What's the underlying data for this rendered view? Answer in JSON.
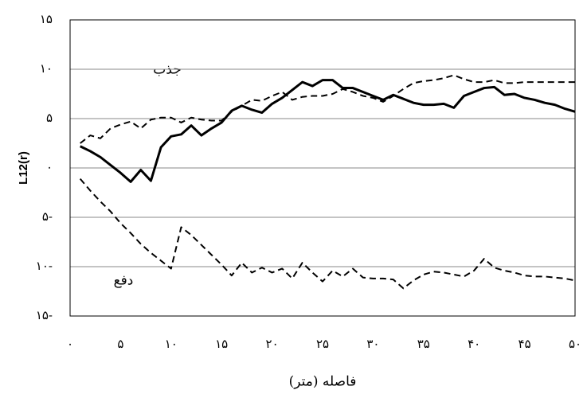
{
  "chart_data": {
    "type": "line",
    "y_label": "L12(r)",
    "x_label": "فاصله (متر)",
    "annotations": [
      "جذب",
      "دفع"
    ],
    "x": [
      1,
      2,
      3,
      4,
      5,
      6,
      7,
      8,
      9,
      10,
      11,
      12,
      13,
      14,
      15,
      16,
      17,
      18,
      19,
      20,
      21,
      22,
      23,
      24,
      25,
      26,
      27,
      28,
      29,
      30,
      31,
      32,
      33,
      34,
      35,
      36,
      37,
      38,
      39,
      40,
      41,
      42,
      43,
      44,
      45,
      46,
      47,
      48,
      49,
      50
    ],
    "series": [
      {
        "color": "#000000",
        "style": "solid",
        "values": [
          2.2,
          1.7,
          1.1,
          0.3,
          -0.5,
          -1.4,
          -0.2,
          -1.3,
          2.1,
          3.2,
          3.4,
          4.3,
          3.3,
          4.0,
          4.6,
          5.8,
          6.3,
          5.9,
          5.6,
          6.5,
          7.1,
          7.9,
          8.7,
          8.3,
          8.9,
          8.9,
          8.1,
          8.1,
          7.7,
          7.3,
          6.9,
          7.4,
          7.0,
          6.6,
          6.4,
          6.4,
          6.5,
          6.1,
          7.3,
          7.7,
          8.1,
          8.2,
          7.4,
          7.5,
          7.1,
          6.9,
          6.6,
          6.4,
          6.0,
          5.7
        ]
      },
      {
        "color": "#000000",
        "style": "dashed",
        "values": [
          2.5,
          3.3,
          3.0,
          4.0,
          4.4,
          4.7,
          4.0,
          4.9,
          5.1,
          5.1,
          4.6,
          5.1,
          4.9,
          4.8,
          4.8,
          5.7,
          6.3,
          6.9,
          6.8,
          7.3,
          7.7,
          6.9,
          7.2,
          7.3,
          7.3,
          7.5,
          8.0,
          7.7,
          7.3,
          7.1,
          6.7,
          7.3,
          8.0,
          8.6,
          8.8,
          8.9,
          9.1,
          9.4,
          9.0,
          8.7,
          8.7,
          8.9,
          8.6,
          8.6,
          8.7,
          8.7,
          8.7,
          8.7,
          8.7,
          8.7
        ]
      },
      {
        "color": "#000000",
        "style": "dashed",
        "values": [
          -1.1,
          -2.3,
          -3.4,
          -4.4,
          -5.6,
          -6.6,
          -7.7,
          -8.6,
          -9.4,
          -10.2,
          -6.0,
          -6.8,
          -7.8,
          -8.8,
          -9.8,
          -10.9,
          -9.6,
          -10.6,
          -10.1,
          -10.6,
          -10.2,
          -11.2,
          -9.6,
          -10.6,
          -11.5,
          -10.4,
          -11.0,
          -10.2,
          -11.1,
          -11.2,
          -11.2,
          -11.3,
          -12.2,
          -11.4,
          -10.8,
          -10.5,
          -10.6,
          -10.8,
          -11.0,
          -10.4,
          -9.2,
          -10.1,
          -10.4,
          -10.6,
          -10.9,
          -11.0,
          -11.0,
          -11.1,
          -11.2,
          -11.4
        ]
      }
    ],
    "xlim": [
      0,
      50
    ],
    "ylim": [
      -15,
      15
    ],
    "xticks": [
      {
        "value": 0,
        "label": "٠"
      },
      {
        "value": 5,
        "label": "۵"
      },
      {
        "value": 10,
        "label": "۱٠"
      },
      {
        "value": 15,
        "label": "۱۵"
      },
      {
        "value": 20,
        "label": "۲٠"
      },
      {
        "value": 25,
        "label": "۲۵"
      },
      {
        "value": 30,
        "label": "۳٠"
      },
      {
        "value": 35,
        "label": "۳۵"
      },
      {
        "value": 40,
        "label": "۴٠"
      },
      {
        "value": 45,
        "label": "۴۵"
      },
      {
        "value": 50,
        "label": "۵٠"
      }
    ],
    "yticks": [
      {
        "value": -15,
        "label": "۱۵-"
      },
      {
        "value": -10,
        "label": "۱٠-"
      },
      {
        "value": -5,
        "label": "۵-"
      },
      {
        "value": 0,
        "label": "٠"
      },
      {
        "value": 5,
        "label": "۵"
      },
      {
        "value": 10,
        "label": "۱٠"
      },
      {
        "value": 15,
        "label": "۱۵"
      }
    ],
    "grid": true
  }
}
